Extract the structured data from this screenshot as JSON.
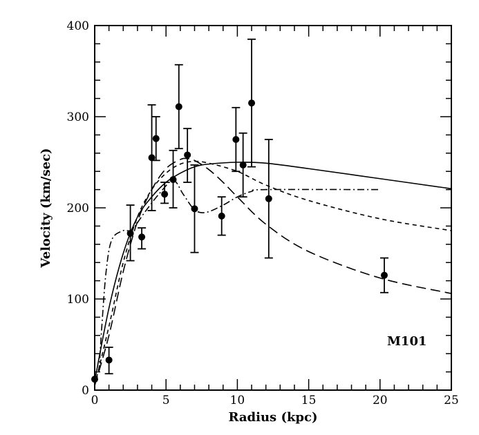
{
  "chart_data": {
    "type": "scatter",
    "title": "",
    "xlabel": "Radius (kpc)",
    "ylabel": "Velocity (km/sec)",
    "annotation": "M101",
    "xlim": [
      0,
      25
    ],
    "ylim": [
      0,
      400
    ],
    "xticks": [
      0,
      5,
      10,
      15,
      20,
      25
    ],
    "yticks": [
      0,
      100,
      200,
      300,
      400
    ],
    "x_minor_step": 1,
    "y_minor_step": 20,
    "grid": false,
    "points": [
      {
        "x": 0.0,
        "y": 12,
        "lo": 12,
        "hi": 12
      },
      {
        "x": 1.0,
        "y": 33,
        "lo": 18,
        "hi": 47
      },
      {
        "x": 2.5,
        "y": 172,
        "lo": 142,
        "hi": 203
      },
      {
        "x": 3.3,
        "y": 168,
        "lo": 155,
        "hi": 178
      },
      {
        "x": 4.0,
        "y": 255,
        "lo": 197,
        "hi": 313
      },
      {
        "x": 4.3,
        "y": 276,
        "lo": 252,
        "hi": 300
      },
      {
        "x": 4.9,
        "y": 215,
        "lo": 205,
        "hi": 228
      },
      {
        "x": 5.5,
        "y": 231,
        "lo": 200,
        "hi": 263
      },
      {
        "x": 5.9,
        "y": 311,
        "lo": 265,
        "hi": 357
      },
      {
        "x": 6.5,
        "y": 258,
        "lo": 228,
        "hi": 287
      },
      {
        "x": 7.0,
        "y": 199,
        "lo": 151,
        "hi": 247
      },
      {
        "x": 8.9,
        "y": 191,
        "lo": 170,
        "hi": 212
      },
      {
        "x": 9.9,
        "y": 275,
        "lo": 240,
        "hi": 310
      },
      {
        "x": 10.4,
        "y": 247,
        "lo": 212,
        "hi": 282
      },
      {
        "x": 11.0,
        "y": 315,
        "lo": 245,
        "hi": 385
      },
      {
        "x": 12.2,
        "y": 210,
        "lo": 145,
        "hi": 275
      },
      {
        "x": 20.3,
        "y": 126,
        "lo": 107,
        "hi": 145
      }
    ],
    "curves": [
      {
        "style": "solid",
        "points": [
          [
            0,
            10
          ],
          [
            1,
            90
          ],
          [
            2,
            150
          ],
          [
            3,
            190
          ],
          [
            4,
            212
          ],
          [
            5,
            228
          ],
          [
            6,
            238
          ],
          [
            7,
            245
          ],
          [
            8,
            248
          ],
          [
            10,
            250
          ],
          [
            12,
            249
          ],
          [
            15,
            243
          ],
          [
            20,
            232
          ],
          [
            25,
            221
          ]
        ]
      },
      {
        "style": "short-dash",
        "points": [
          [
            0,
            5
          ],
          [
            1,
            70
          ],
          [
            2,
            140
          ],
          [
            3,
            190
          ],
          [
            4,
            220
          ],
          [
            5,
            238
          ],
          [
            6,
            248
          ],
          [
            7,
            251
          ],
          [
            8,
            249
          ],
          [
            10,
            240
          ],
          [
            12,
            225
          ],
          [
            15,
            208
          ],
          [
            20,
            188
          ],
          [
            25,
            175
          ]
        ]
      },
      {
        "style": "long-dash",
        "points": [
          [
            0,
            5
          ],
          [
            1,
            60
          ],
          [
            2,
            130
          ],
          [
            3,
            185
          ],
          [
            4,
            220
          ],
          [
            5,
            243
          ],
          [
            6,
            253
          ],
          [
            6.5,
            254
          ],
          [
            7,
            252
          ],
          [
            8,
            242
          ],
          [
            9,
            228
          ],
          [
            10,
            212
          ],
          [
            12,
            182
          ],
          [
            15,
            152
          ],
          [
            20,
            123
          ],
          [
            25,
            106
          ]
        ]
      },
      {
        "style": "dash-dot",
        "points": [
          [
            0.3,
            20
          ],
          [
            0.5,
            70
          ],
          [
            0.8,
            130
          ],
          [
            1.2,
            165
          ],
          [
            2,
            175
          ],
          [
            2.6,
            176
          ],
          [
            3.5,
            195
          ],
          [
            4.5,
            215
          ],
          [
            5.5,
            230
          ],
          [
            6.2,
            215
          ],
          [
            7,
            198
          ],
          [
            7.8,
            195
          ],
          [
            9,
            203
          ],
          [
            10,
            212
          ],
          [
            11,
            218
          ],
          [
            12,
            220
          ],
          [
            20,
            220
          ]
        ]
      }
    ],
    "colors": {
      "ink": "#000000",
      "background": "#ffffff"
    }
  }
}
